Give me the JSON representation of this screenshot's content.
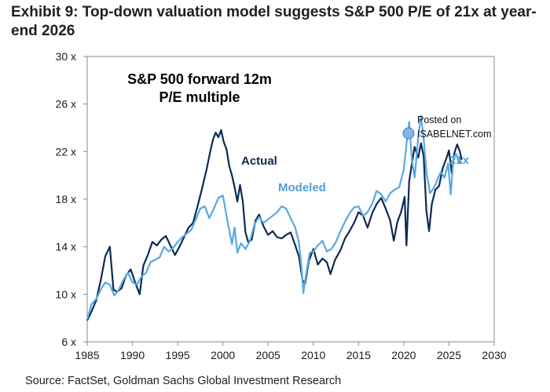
{
  "exhibit_title": "Exhibit 9: Top-down valuation model suggests S&P 500 P/E of 21x at year-end 2026",
  "source": "Source: FactSet, Goldman Sachs Global Investment Research",
  "watermark": {
    "line1": "Posted on",
    "line2": "ISABELNET.com"
  },
  "colors": {
    "actual": "#0d2a55",
    "modeled": "#59a9e0",
    "axis": "#8a8a8a",
    "modeled_text": "#4f9fd8"
  },
  "chart_data": {
    "type": "line",
    "title": "S&P 500 forward 12m P/E multiple",
    "title_lines": [
      "S&P 500 forward 12m",
      "P/E multiple"
    ],
    "xlabel": "",
    "ylabel": "",
    "xlim": [
      1985,
      2030
    ],
    "ylim": [
      6,
      30
    ],
    "x_ticks": [
      1985,
      1990,
      1995,
      2000,
      2005,
      2010,
      2015,
      2020,
      2025,
      2030
    ],
    "y_ticks": [
      6,
      10,
      14,
      18,
      22,
      26,
      30
    ],
    "y_tick_labels": [
      "6 x",
      "10 x",
      "14 x",
      "18 x",
      "22 x",
      "26 x",
      "30 x"
    ],
    "grid": false,
    "annotations": [
      {
        "text": "Actual",
        "series": "Actual"
      },
      {
        "text": "Modeled",
        "series": "Modeled"
      },
      {
        "text": "21x",
        "series": "Modeled"
      }
    ],
    "series": [
      {
        "name": "Actual",
        "x": [
          1985.0,
          1985.5,
          1986.0,
          1986.5,
          1987.0,
          1987.5,
          1987.9,
          1988.3,
          1988.8,
          1989.3,
          1989.8,
          1990.3,
          1990.8,
          1991.2,
          1991.7,
          1992.2,
          1992.7,
          1993.2,
          1993.7,
          1994.2,
          1994.7,
          1995.2,
          1995.7,
          1996.2,
          1996.7,
          1997.2,
          1997.7,
          1998.2,
          1998.6,
          1998.9,
          1999.2,
          1999.5,
          1999.8,
          2000.1,
          2000.4,
          2000.7,
          2001.0,
          2001.3,
          2001.6,
          2001.9,
          2002.2,
          2002.5,
          2002.8,
          2003.2,
          2003.6,
          2004.0,
          2004.5,
          2005.0,
          2005.5,
          2006.0,
          2006.5,
          2007.0,
          2007.5,
          2008.0,
          2008.4,
          2008.8,
          2009.1,
          2009.5,
          2010.0,
          2010.5,
          2011.0,
          2011.5,
          2011.9,
          2012.4,
          2013.0,
          2013.5,
          2014.0,
          2014.5,
          2015.0,
          2015.5,
          2016.0,
          2016.5,
          2017.0,
          2017.5,
          2018.0,
          2018.5,
          2018.9,
          2019.3,
          2019.7,
          2020.1,
          2020.3,
          2020.6,
          2020.9,
          2021.2,
          2021.6,
          2021.9,
          2022.2,
          2022.5,
          2022.8,
          2023.1,
          2023.5,
          2023.9,
          2024.3,
          2024.7,
          2025.0,
          2025.3,
          2025.6,
          2025.9,
          2026.2,
          2026.4
        ],
        "values": [
          7.8,
          8.6,
          9.5,
          11.2,
          13.2,
          14.0,
          10.4,
          10.2,
          10.5,
          11.6,
          12.1,
          11.0,
          10.0,
          12.4,
          13.3,
          14.4,
          14.1,
          14.6,
          14.9,
          14.1,
          13.3,
          14.0,
          14.8,
          15.6,
          16.0,
          17.4,
          18.9,
          20.5,
          22.0,
          23.0,
          23.6,
          23.2,
          23.8,
          22.8,
          22.2,
          20.8,
          20.0,
          19.0,
          17.8,
          19.2,
          17.8,
          15.2,
          14.4,
          14.6,
          16.2,
          16.7,
          15.7,
          15.0,
          15.3,
          14.8,
          14.7,
          15.0,
          15.2,
          14.1,
          13.2,
          11.2,
          10.9,
          12.8,
          13.8,
          12.5,
          13.0,
          12.7,
          11.7,
          12.9,
          13.7,
          14.7,
          15.3,
          16.0,
          16.9,
          16.6,
          15.6,
          16.8,
          17.6,
          18.1,
          17.2,
          16.2,
          14.5,
          16.1,
          16.9,
          18.2,
          14.1,
          19.5,
          21.0,
          22.4,
          21.5,
          22.7,
          21.6,
          17.0,
          15.3,
          17.6,
          18.8,
          19.1,
          20.6,
          21.4,
          22.1,
          20.2,
          21.9,
          22.6,
          22.0,
          21.3
        ]
      },
      {
        "name": "Modeled",
        "x": [
          1985.0,
          1985.5,
          1986.0,
          1986.5,
          1987.0,
          1987.5,
          1988.0,
          1988.5,
          1989.0,
          1989.5,
          1990.0,
          1990.5,
          1991.0,
          1991.5,
          1992.0,
          1992.5,
          1993.0,
          1993.5,
          1994.0,
          1994.5,
          1995.0,
          1995.5,
          1996.0,
          1996.5,
          1997.0,
          1997.5,
          1998.0,
          1998.5,
          1999.0,
          1999.5,
          2000.0,
          2000.5,
          2001.0,
          2001.3,
          2001.6,
          2002.0,
          2002.5,
          2003.0,
          2003.5,
          2004.0,
          2004.5,
          2005.0,
          2005.5,
          2006.0,
          2006.5,
          2007.0,
          2007.5,
          2008.0,
          2008.4,
          2008.7,
          2008.9,
          2009.2,
          2009.6,
          2010.0,
          2010.5,
          2011.0,
          2011.5,
          2012.0,
          2012.5,
          2013.0,
          2013.5,
          2014.0,
          2014.5,
          2015.0,
          2015.5,
          2016.0,
          2016.5,
          2017.0,
          2017.5,
          2018.0,
          2018.5,
          2019.0,
          2019.5,
          2020.0,
          2020.3,
          2020.6,
          2020.9,
          2021.2,
          2021.6,
          2021.9,
          2022.2,
          2022.5,
          2022.9,
          2023.3,
          2023.7,
          2024.1,
          2024.5,
          2024.9,
          2025.2,
          2025.5,
          2025.8,
          2026.1,
          2026.4
        ],
        "values": [
          7.9,
          9.2,
          9.6,
          10.4,
          11.0,
          10.8,
          9.9,
          10.4,
          11.2,
          11.8,
          11.0,
          10.8,
          11.5,
          11.8,
          12.7,
          12.9,
          13.1,
          14.0,
          13.6,
          13.9,
          14.4,
          14.8,
          15.1,
          15.4,
          16.3,
          17.2,
          17.4,
          16.4,
          17.2,
          18.1,
          18.3,
          16.2,
          14.2,
          15.6,
          13.5,
          14.3,
          13.8,
          14.5,
          15.9,
          16.5,
          16.0,
          16.3,
          16.6,
          16.9,
          17.4,
          17.2,
          16.4,
          15.6,
          14.4,
          12.2,
          10.1,
          11.7,
          13.5,
          13.6,
          14.1,
          14.5,
          13.6,
          13.8,
          14.4,
          15.3,
          16.1,
          16.8,
          17.3,
          17.4,
          16.6,
          16.9,
          17.6,
          18.7,
          18.4,
          17.8,
          18.5,
          18.8,
          19.0,
          20.5,
          22.6,
          24.5,
          21.3,
          19.8,
          23.2,
          25.0,
          23.1,
          20.3,
          18.5,
          18.9,
          19.6,
          20.3,
          19.8,
          21.0,
          18.4,
          21.5,
          21.8,
          21.0,
          21.2
        ]
      }
    ]
  }
}
